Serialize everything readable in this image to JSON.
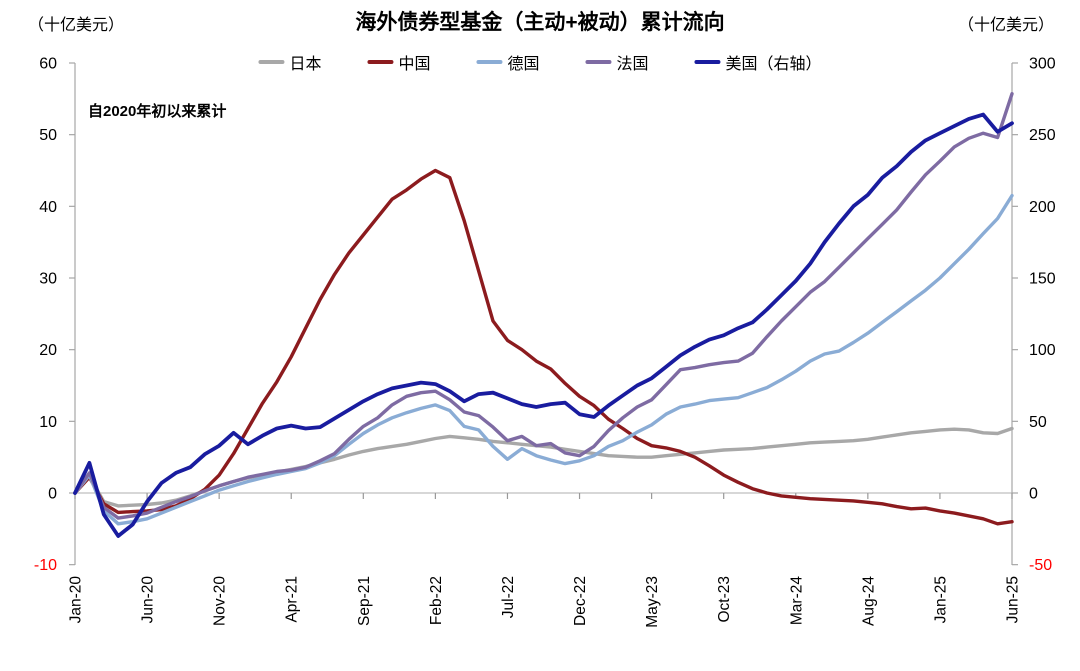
{
  "title": "海外债券型基金（主动+被动）累计流向",
  "left_axis_unit": "（十亿美元）",
  "right_axis_unit": "（十亿美元）",
  "annotation": "自2020年初以来累计",
  "chart_data": {
    "type": "line",
    "title": "海外债券型基金（主动+被动）累计流向",
    "subtitle_annotation": "自2020年初以来累计",
    "unit": "十亿美元",
    "legend_position": "top-center",
    "grid": "zero-line-only",
    "months_span": 65,
    "x_start": "Jan-20",
    "x_end": "Jun-25",
    "x_tick_labels": [
      "Jan-20",
      "Jun-20",
      "Nov-20",
      "Apr-21",
      "Sep-21",
      "Feb-22",
      "Jul-22",
      "Dec-22",
      "May-23",
      "Oct-23",
      "Mar-24",
      "Aug-24",
      "Jan-25",
      "Jun-25"
    ],
    "x_tick_month_indices": [
      0,
      5,
      10,
      15,
      20,
      25,
      30,
      35,
      40,
      45,
      50,
      55,
      60,
      65
    ],
    "left_axis": {
      "min": -10,
      "max": 60,
      "ticks": [
        60,
        50,
        40,
        30,
        20,
        10,
        0,
        -10
      ],
      "tick_color": "#000000",
      "negative_tick_color": "#FF0000"
    },
    "right_axis": {
      "min": -50,
      "max": 300,
      "ticks": [
        300,
        250,
        200,
        150,
        100,
        50,
        0,
        -50
      ],
      "tick_color": "#000000",
      "negative_tick_color": "#FF0000"
    },
    "axis_line_color": "#A6A6A6",
    "zero_line_color": "#BFBFBF",
    "series": [
      {
        "key": "japan",
        "name": "日本",
        "axis": "left",
        "color": "#A8A8A8",
        "values": [
          0,
          2.3,
          -1.2,
          -1.8,
          -1.7,
          -1.6,
          -1.4,
          -1.0,
          -0.4,
          0.3,
          1.0,
          1.6,
          2.1,
          2.5,
          2.9,
          3.3,
          3.7,
          4.2,
          4.7,
          5.3,
          5.8,
          6.2,
          6.5,
          6.8,
          7.2,
          7.6,
          7.9,
          7.7,
          7.5,
          7.2,
          7.0,
          6.8,
          6.6,
          6.4,
          6.1,
          5.8,
          5.5,
          5.2,
          5.1,
          5.0,
          5.0,
          5.2,
          5.4,
          5.6,
          5.8,
          6.0,
          6.1,
          6.2,
          6.4,
          6.6,
          6.8,
          7.0,
          7.1,
          7.2,
          7.3,
          7.5,
          7.8,
          8.1,
          8.4,
          8.6,
          8.8,
          8.9,
          8.8,
          8.4,
          8.3,
          9.0
        ]
      },
      {
        "key": "china",
        "name": "中国",
        "axis": "left",
        "color": "#8C1B1E",
        "values": [
          0,
          2.2,
          -1.5,
          -2.7,
          -2.6,
          -2.5,
          -2.3,
          -1.8,
          -0.8,
          0.5,
          2.5,
          5.5,
          9.0,
          12.5,
          15.5,
          19.0,
          23.0,
          27.0,
          30.5,
          33.5,
          36.0,
          38.5,
          41.0,
          42.3,
          43.8,
          45.0,
          44.0,
          38.0,
          31.0,
          24.0,
          21.3,
          20.0,
          18.4,
          17.3,
          15.3,
          13.5,
          12.2,
          10.3,
          9.0,
          7.6,
          6.6,
          6.3,
          5.8,
          5.0,
          3.8,
          2.5,
          1.5,
          0.6,
          0.0,
          -0.4,
          -0.6,
          -0.8,
          -0.9,
          -1.0,
          -1.1,
          -1.3,
          -1.5,
          -1.9,
          -2.2,
          -2.1,
          -2.5,
          -2.8,
          -3.2,
          -3.6,
          -4.3,
          -4.0
        ]
      },
      {
        "key": "germany",
        "name": "德国",
        "axis": "left",
        "color": "#8AACD5",
        "values": [
          0,
          2.5,
          -2.5,
          -4.3,
          -4.0,
          -3.6,
          -2.8,
          -2.0,
          -1.2,
          -0.4,
          0.4,
          1.0,
          1.6,
          2.1,
          2.6,
          3.0,
          3.4,
          4.2,
          5.2,
          6.8,
          8.3,
          9.5,
          10.5,
          11.2,
          11.8,
          12.3,
          11.5,
          9.3,
          8.8,
          6.5,
          4.7,
          6.2,
          5.2,
          4.6,
          4.1,
          4.5,
          5.2,
          6.5,
          7.3,
          8.5,
          9.5,
          11.0,
          12.0,
          12.4,
          12.9,
          13.1,
          13.3,
          14.0,
          14.7,
          15.8,
          17.0,
          18.4,
          19.4,
          19.8,
          21.0,
          22.3,
          23.8,
          25.3,
          26.8,
          28.3,
          30.0,
          32.0,
          34.0,
          36.2,
          38.3,
          41.5
        ]
      },
      {
        "key": "france",
        "name": "法国",
        "axis": "left",
        "color": "#7E6BA3",
        "values": [
          0,
          2.8,
          -2.0,
          -3.5,
          -3.2,
          -2.8,
          -2.0,
          -1.2,
          -0.5,
          0.3,
          1.0,
          1.6,
          2.2,
          2.6,
          3.0,
          3.2,
          3.6,
          4.5,
          5.5,
          7.5,
          9.3,
          10.5,
          12.3,
          13.5,
          14.0,
          14.2,
          13.0,
          11.3,
          10.8,
          9.2,
          7.3,
          7.9,
          6.6,
          6.9,
          5.6,
          5.2,
          6.5,
          8.7,
          10.5,
          12.0,
          13.0,
          15.1,
          17.2,
          17.5,
          17.9,
          18.2,
          18.4,
          19.5,
          21.8,
          24.0,
          26.0,
          28.0,
          29.5,
          31.5,
          33.5,
          35.5,
          37.5,
          39.5,
          42.0,
          44.4,
          46.3,
          48.3,
          49.5,
          50.2,
          49.6,
          55.7
        ]
      },
      {
        "key": "usa",
        "name": "美国（右轴）",
        "axis": "right",
        "color": "#191C9F",
        "values": [
          0,
          21,
          -15,
          -30,
          -22,
          -6,
          7,
          14,
          18,
          27,
          33,
          42,
          34,
          40,
          45,
          47,
          45,
          46,
          52,
          58,
          64,
          69,
          73,
          75,
          77,
          76,
          71,
          64,
          69,
          70,
          66,
          62,
          60,
          62,
          63,
          55,
          53,
          61,
          68,
          75,
          80,
          88,
          96,
          102,
          107,
          110,
          115,
          119,
          128,
          138,
          148,
          160,
          175,
          188,
          200,
          208,
          220,
          228,
          238,
          246,
          251,
          256,
          261,
          264,
          252,
          258
        ]
      }
    ]
  }
}
